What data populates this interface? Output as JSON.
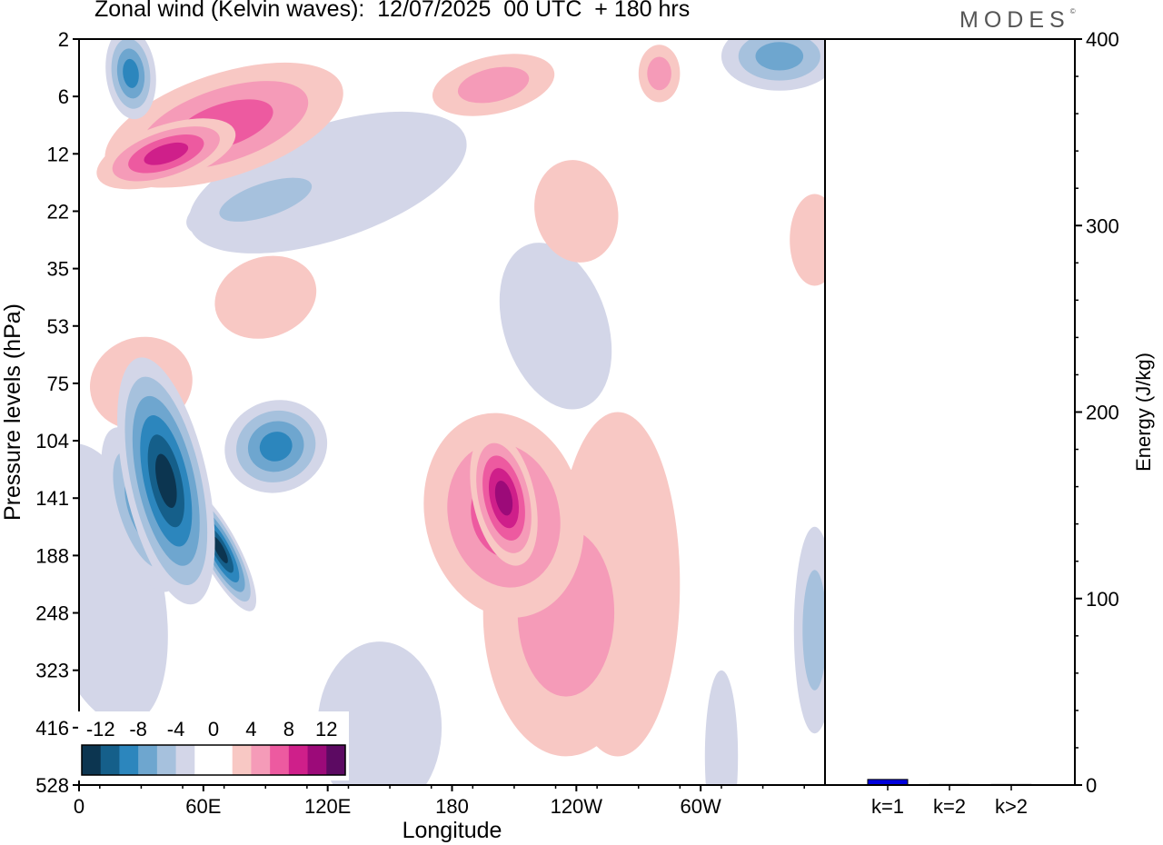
{
  "title": "Zonal wind (Kelvin waves):  12/07/2025  00 UTC  + 180 hrs",
  "logo": "MODES",
  "logo_mark": "©",
  "colors": {
    "neg": [
      "#0c3550",
      "#155f8a",
      "#2c86bd",
      "#6ea6cf",
      "#a6c1dd",
      "#d3d6e8"
    ],
    "zero": "#ffffff",
    "pos": [
      "#f8c8c4",
      "#f59bb8",
      "#ed5aa0",
      "#cf1f8a",
      "#9c0a79",
      "#5c0a62"
    ],
    "bar": "#0000dd"
  },
  "chart_data": [
    {
      "type": "heatmap",
      "xlabel": "Longitude",
      "ylabel": "Pressure levels (hPa)",
      "x_ticks": [
        "0",
        "60E",
        "120E",
        "180",
        "120W",
        "60W"
      ],
      "y_ticks": [
        "2",
        "6",
        "12",
        "22",
        "35",
        "53",
        "75",
        "104",
        "141",
        "188",
        "248",
        "323",
        "416",
        "528"
      ],
      "colorbar_labels": [
        "-12",
        "-8",
        "-4",
        "0",
        "4",
        "8",
        "12"
      ],
      "colorbar_levels": [
        -14,
        -12,
        -10,
        -8,
        -6,
        -4,
        -2,
        2,
        4,
        6,
        8,
        10,
        12,
        14
      ],
      "features": [
        {
          "sign": "neg",
          "level": 6,
          "lon": 68,
          "lev": 8.9,
          "sx": 9,
          "sy": 1.2,
          "tilt": 0.5
        },
        {
          "sign": "neg",
          "level": 6,
          "lon": 42,
          "lev": 7.7,
          "sx": 20,
          "sy": 2.2,
          "tilt": 0.2
        },
        {
          "sign": "neg",
          "level": 3,
          "lon": 30,
          "lev": 8.2,
          "sx": 15,
          "sy": 1.5,
          "tilt": 0.3
        },
        {
          "sign": "neg",
          "level": 4,
          "lon": 95,
          "lev": 7.1,
          "sx": 25,
          "sy": 0.8,
          "tilt": 0.3
        },
        {
          "sign": "neg",
          "level": 1,
          "lon": 10,
          "lev": 9.5,
          "sx": 30,
          "sy": 2.5,
          "tilt": 0.2
        },
        {
          "sign": "neg",
          "level": 1,
          "lon": 120,
          "lev": 2.5,
          "sx": 70,
          "sy": 1.0,
          "tilt": 0.3
        },
        {
          "sign": "neg",
          "level": 2,
          "lon": 90,
          "lev": 2.8,
          "sx": 40,
          "sy": 0.5,
          "tilt": 0.3
        },
        {
          "sign": "neg",
          "level": 4,
          "lon": 25,
          "lev": 0.6,
          "sx": 12,
          "sy": 0.8,
          "tilt": 0.1
        },
        {
          "sign": "neg",
          "level": 3,
          "lon": 338,
          "lev": 0.3,
          "sx": 28,
          "sy": 0.6,
          "tilt": 0
        },
        {
          "sign": "neg",
          "level": 2,
          "lon": 355,
          "lev": 10.3,
          "sx": 10,
          "sy": 1.8,
          "tilt": 0
        },
        {
          "sign": "neg",
          "level": 1,
          "lon": 230,
          "lev": 5.0,
          "sx": 25,
          "sy": 1.5,
          "tilt": 0.3
        },
        {
          "sign": "neg",
          "level": 1,
          "lon": 145,
          "lev": 12.0,
          "sx": 30,
          "sy": 1.5,
          "tilt": 0
        },
        {
          "sign": "neg",
          "level": 1,
          "lon": 310,
          "lev": 12.5,
          "sx": 8,
          "sy": 1.5,
          "tilt": 0
        },
        {
          "sign": "pos",
          "level": 4,
          "lon": 42,
          "lev": 2.0,
          "sx": 35,
          "sy": 0.5,
          "tilt": 0.3
        },
        {
          "sign": "pos",
          "level": 3,
          "lon": 70,
          "lev": 1.5,
          "sx": 60,
          "sy": 0.9,
          "tilt": 0.3
        },
        {
          "sign": "pos",
          "level": 3,
          "lon": 205,
          "lev": 8.3,
          "sx": 38,
          "sy": 1.8,
          "tilt": 0.2
        },
        {
          "sign": "pos",
          "level": 5,
          "lon": 205,
          "lev": 8.0,
          "sx": 15,
          "sy": 1.2,
          "tilt": 0.2
        },
        {
          "sign": "pos",
          "level": 2,
          "lon": 235,
          "lev": 10.0,
          "sx": 40,
          "sy": 2.5,
          "tilt": 0
        },
        {
          "sign": "pos",
          "level": 1,
          "lon": 260,
          "lev": 9.5,
          "sx": 30,
          "sy": 3.0,
          "tilt": 0
        },
        {
          "sign": "pos",
          "level": 2,
          "lon": 280,
          "lev": 0.6,
          "sx": 10,
          "sy": 0.5,
          "tilt": 0
        },
        {
          "sign": "pos",
          "level": 2,
          "lon": 200,
          "lev": 0.8,
          "sx": 30,
          "sy": 0.5,
          "tilt": 0.2
        },
        {
          "sign": "pos",
          "level": 1,
          "lon": 30,
          "lev": 6.0,
          "sx": 25,
          "sy": 0.8,
          "tilt": 0.3
        },
        {
          "sign": "pos",
          "level": 1,
          "lon": 90,
          "lev": 4.5,
          "sx": 25,
          "sy": 0.7,
          "tilt": 0.3
        },
        {
          "sign": "pos",
          "level": 1,
          "lon": 240,
          "lev": 3.0,
          "sx": 20,
          "sy": 0.9,
          "tilt": 0.2
        },
        {
          "sign": "pos",
          "level": 1,
          "lon": 355,
          "lev": 3.5,
          "sx": 12,
          "sy": 0.8,
          "tilt": 0
        }
      ]
    },
    {
      "type": "bar",
      "categories": [
        "k=1",
        "k=2",
        "k>2"
      ],
      "values": [
        3,
        0.3,
        0.3
      ],
      "ylabel": "Energy (J/kg)",
      "ylim": [
        0,
        400
      ],
      "y_ticks": [
        0,
        100,
        200,
        300,
        400
      ]
    }
  ]
}
